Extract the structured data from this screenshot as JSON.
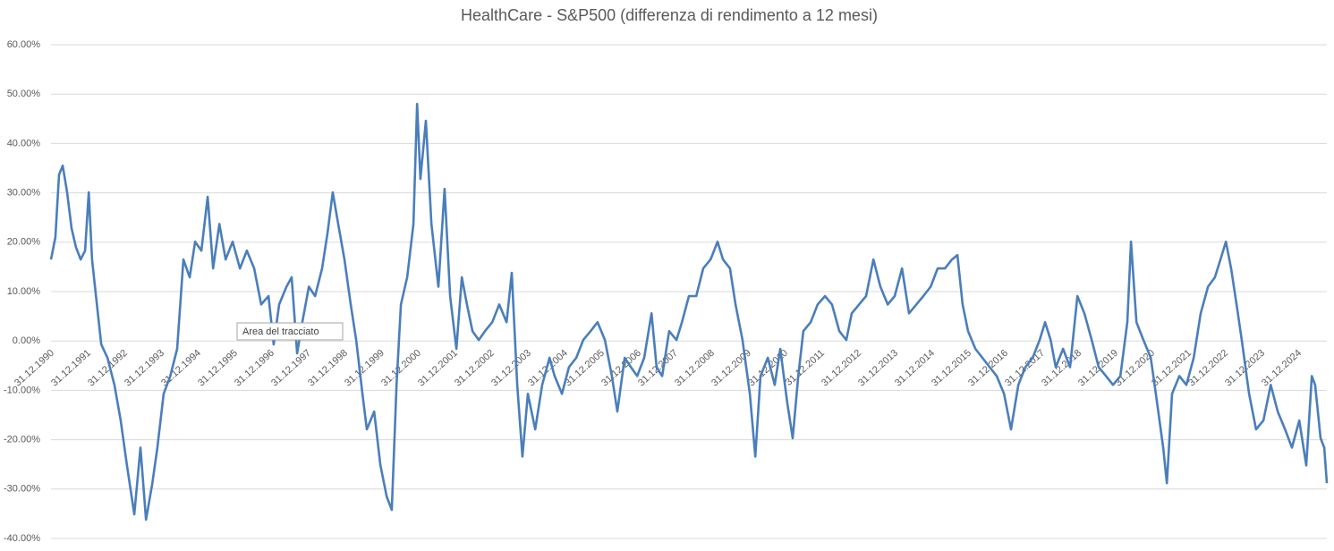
{
  "chart_data": {
    "type": "line",
    "title": "HealthCare - S&P500 (differenza di rendimento a 12 mesi)",
    "annotation": "Area del tracciato",
    "color": "#4a7ebb",
    "grid": true,
    "ylim": [
      -40,
      60
    ],
    "yticks": [
      {
        "value": 60,
        "label": "60.00%"
      },
      {
        "value": 50,
        "label": "50.00%"
      },
      {
        "value": 40,
        "label": "40.00%"
      },
      {
        "value": 30,
        "label": "30.00%"
      },
      {
        "value": 20,
        "label": "20.00%"
      },
      {
        "value": 10,
        "label": "10.00%"
      },
      {
        "value": 0,
        "label": "0.00%"
      },
      {
        "value": -10,
        "label": "-10.00%"
      },
      {
        "value": -20,
        "label": "-20.00%"
      },
      {
        "value": -30,
        "label": "-30.00%"
      },
      {
        "value": -40,
        "label": "-40.00%"
      }
    ],
    "xlim": [
      1990.95,
      2025.73
    ],
    "xticks": [
      {
        "value": 1991,
        "label": "31.12.1990"
      },
      {
        "value": 1992,
        "label": "31.12.1991"
      },
      {
        "value": 1993,
        "label": "31.12.1992"
      },
      {
        "value": 1994,
        "label": "31.12.1993"
      },
      {
        "value": 1995,
        "label": "31.12.1994"
      },
      {
        "value": 1996,
        "label": "31.12.1995"
      },
      {
        "value": 1997,
        "label": "31.12.1996"
      },
      {
        "value": 1998,
        "label": "31.12.1997"
      },
      {
        "value": 1999,
        "label": "31.12.1998"
      },
      {
        "value": 2000,
        "label": "31.12.1999"
      },
      {
        "value": 2001,
        "label": "31.12.2000"
      },
      {
        "value": 2002,
        "label": "31.12.2001"
      },
      {
        "value": 2003,
        "label": "31.12.2002"
      },
      {
        "value": 2004,
        "label": "31.12.2003"
      },
      {
        "value": 2005,
        "label": "31.12.2004"
      },
      {
        "value": 2006,
        "label": "31.12.2005"
      },
      {
        "value": 2007,
        "label": "31.12.2006"
      },
      {
        "value": 2008,
        "label": "31.12.2007"
      },
      {
        "value": 2009,
        "label": "31.12.2008"
      },
      {
        "value": 2010,
        "label": "31.12.2009"
      },
      {
        "value": 2011,
        "label": "31.12.2010"
      },
      {
        "value": 2012,
        "label": "31.12.2011"
      },
      {
        "value": 2013,
        "label": "31.12.2012"
      },
      {
        "value": 2014,
        "label": "31.12.2013"
      },
      {
        "value": 2015,
        "label": "31.12.2014"
      },
      {
        "value": 2016,
        "label": "31.12.2015"
      },
      {
        "value": 2017,
        "label": "31.12.2016"
      },
      {
        "value": 2018,
        "label": "31.12.2017"
      },
      {
        "value": 2019,
        "label": "31.12.2018"
      },
      {
        "value": 2020,
        "label": "31.12.2019"
      },
      {
        "value": 2021,
        "label": "31.12.2020"
      },
      {
        "value": 2022,
        "label": "31.12.2021"
      },
      {
        "value": 2023,
        "label": "31.12.2022"
      },
      {
        "value": 2024,
        "label": "31.12.2023"
      },
      {
        "value": 2025,
        "label": "31.12.2024"
      }
    ],
    "x": [
      1990.95,
      1991.07,
      1991.17,
      1991.27,
      1991.39,
      1991.51,
      1991.63,
      1991.76,
      1991.88,
      1991.98,
      1992.07,
      1992.2,
      1992.32,
      1992.49,
      1992.68,
      1992.85,
      1993.02,
      1993.22,
      1993.39,
      1993.54,
      1993.71,
      1993.85,
      1994.02,
      1994.2,
      1994.39,
      1994.56,
      1994.73,
      1994.88,
      1995.05,
      1995.22,
      1995.37,
      1995.54,
      1995.71,
      1995.9,
      1996.1,
      1996.29,
      1996.49,
      1996.68,
      1996.88,
      1997.02,
      1997.17,
      1997.37,
      1997.51,
      1997.66,
      1997.8,
      1997.98,
      1998.15,
      1998.34,
      1998.49,
      1998.63,
      1998.78,
      1998.95,
      1999.12,
      1999.27,
      1999.44,
      1999.56,
      1999.76,
      1999.93,
      2000.1,
      2000.24,
      2000.37,
      2000.49,
      2000.66,
      2000.83,
      2000.93,
      2001.02,
      2001.17,
      2001.32,
      2001.51,
      2001.68,
      2001.83,
      2002.0,
      2002.15,
      2002.29,
      2002.44,
      2002.61,
      2002.78,
      2002.98,
      2003.17,
      2003.37,
      2003.51,
      2003.66,
      2003.8,
      2003.95,
      2004.15,
      2004.34,
      2004.54,
      2004.68,
      2004.88,
      2005.07,
      2005.27,
      2005.46,
      2005.66,
      2005.85,
      2006.05,
      2006.24,
      2006.39,
      2006.59,
      2006.76,
      2006.93,
      2007.12,
      2007.32,
      2007.46,
      2007.61,
      2007.8,
      2008.0,
      2008.15,
      2008.34,
      2008.54,
      2008.73,
      2008.93,
      2009.12,
      2009.27,
      2009.46,
      2009.61,
      2009.8,
      2010.0,
      2010.15,
      2010.29,
      2010.49,
      2010.68,
      2010.83,
      2011.02,
      2011.17,
      2011.32,
      2011.46,
      2011.66,
      2011.85,
      2012.05,
      2012.24,
      2012.44,
      2012.63,
      2012.78,
      2012.98,
      2013.17,
      2013.37,
      2013.56,
      2013.76,
      2013.95,
      2014.15,
      2014.34,
      2014.54,
      2014.73,
      2014.93,
      2015.12,
      2015.32,
      2015.51,
      2015.66,
      2015.8,
      2015.95,
      2016.15,
      2016.34,
      2016.54,
      2016.73,
      2016.93,
      2017.12,
      2017.32,
      2017.51,
      2017.71,
      2017.9,
      2018.05,
      2018.2,
      2018.34,
      2018.54,
      2018.73,
      2018.93,
      2019.12,
      2019.32,
      2019.51,
      2019.71,
      2019.9,
      2020.1,
      2020.29,
      2020.39,
      2020.54,
      2020.73,
      2020.93,
      2021.07,
      2021.27,
      2021.37,
      2021.51,
      2021.71,
      2021.9,
      2022.1,
      2022.29,
      2022.49,
      2022.68,
      2022.83,
      2022.98,
      2023.12,
      2023.27,
      2023.41,
      2023.61,
      2023.8,
      2024.0,
      2024.2,
      2024.39,
      2024.59,
      2024.78,
      2024.98,
      2025.17,
      2025.32,
      2025.41,
      2025.56,
      2025.66,
      2025.73
    ],
    "values": [
      16.5,
      21.0,
      33.7,
      35.5,
      30.1,
      22.8,
      19.0,
      16.5,
      18.3,
      30.1,
      16.5,
      7.4,
      -0.7,
      -3.4,
      -8.9,
      -16.1,
      -25.2,
      -35.1,
      -21.6,
      -36.2,
      -28.9,
      -21.6,
      -10.7,
      -7.1,
      -1.6,
      16.5,
      12.9,
      20.1,
      18.3,
      29.2,
      14.7,
      23.7,
      16.5,
      20.1,
      14.7,
      18.3,
      14.7,
      7.4,
      9.1,
      -0.7,
      7.4,
      11.0,
      12.9,
      -2.5,
      3.8,
      11.0,
      9.1,
      14.7,
      21.9,
      30.1,
      23.7,
      16.5,
      7.4,
      0.2,
      -10.7,
      -17.9,
      -14.3,
      -25.2,
      -31.5,
      -34.2,
      -8.9,
      7.4,
      12.9,
      23.7,
      48.0,
      32.8,
      44.6,
      23.7,
      11.0,
      30.8,
      9.1,
      -1.6,
      12.9,
      7.4,
      2.0,
      0.2,
      2.0,
      3.8,
      7.4,
      3.8,
      13.8,
      -8.9,
      -23.4,
      -10.7,
      -17.9,
      -8.9,
      -3.4,
      -7.1,
      -10.7,
      -5.3,
      -3.4,
      0.2,
      2.0,
      3.8,
      0.2,
      -7.1,
      -14.3,
      -3.4,
      -5.3,
      -7.1,
      -3.4,
      5.6,
      -5.3,
      -7.1,
      2.0,
      0.2,
      3.8,
      9.1,
      9.1,
      14.7,
      16.5,
      20.1,
      16.5,
      14.7,
      7.4,
      0.2,
      -10.7,
      -23.4,
      -7.1,
      -3.4,
      -8.9,
      -1.6,
      -12.5,
      -19.7,
      -7.1,
      2.0,
      3.8,
      7.4,
      9.1,
      7.4,
      2.0,
      0.2,
      5.6,
      7.4,
      9.1,
      16.5,
      11.0,
      7.4,
      9.1,
      14.7,
      5.6,
      7.4,
      9.1,
      11.0,
      14.7,
      14.7,
      16.5,
      17.4,
      7.4,
      2.0,
      -1.6,
      -3.4,
      -5.3,
      -7.1,
      -10.7,
      -17.9,
      -8.9,
      -5.3,
      -3.4,
      0.2,
      3.8,
      0.2,
      -5.3,
      -1.6,
      -5.3,
      9.1,
      5.6,
      0.2,
      -5.3,
      -7.1,
      -8.9,
      -7.1,
      3.8,
      20.1,
      3.8,
      0.2,
      -3.4,
      -10.7,
      -21.6,
      -28.8,
      -10.7,
      -7.1,
      -8.9,
      -3.4,
      5.6,
      11.0,
      12.9,
      16.5,
      20.1,
      14.7,
      7.4,
      0.2,
      -10.7,
      -17.9,
      -16.1,
      -8.9,
      -14.3,
      -17.9,
      -21.6,
      -16.1,
      -25.2,
      -7.1,
      -8.9,
      -19.7,
      -21.6,
      -28.8
    ]
  }
}
